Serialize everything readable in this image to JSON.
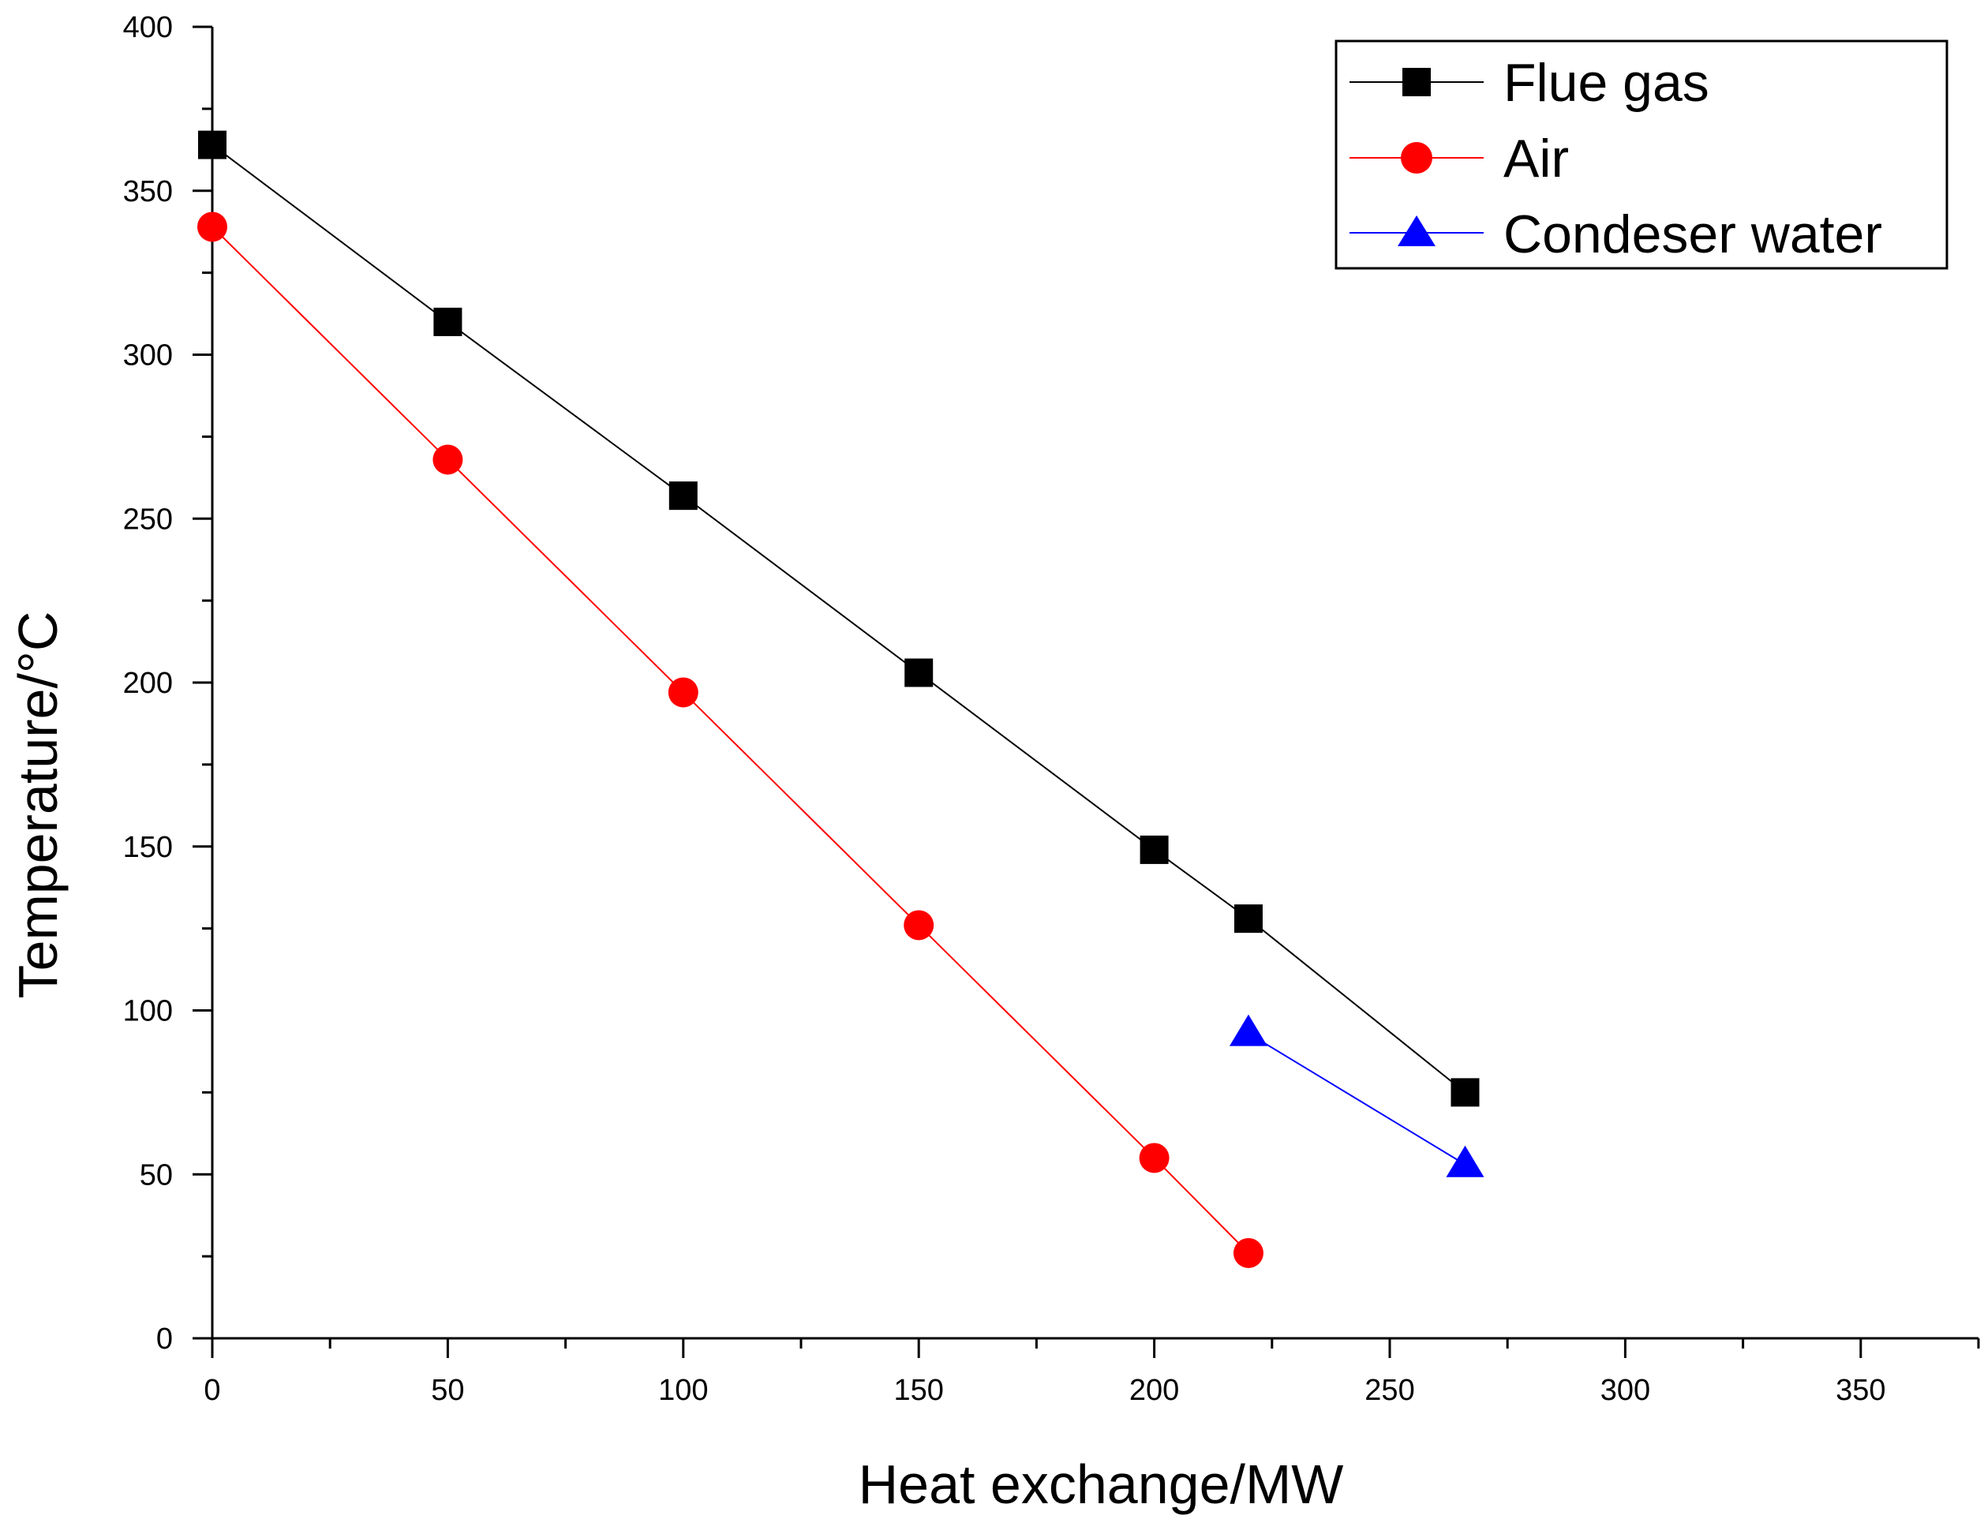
{
  "chart_data": {
    "type": "line",
    "title": "",
    "xlabel": "Heat exchange/MW",
    "ylabel": "Temperature/°C",
    "xlim": [
      0,
      375
    ],
    "ylim": [
      0,
      400
    ],
    "x_ticks": [
      0,
      50,
      100,
      150,
      200,
      250,
      300,
      350
    ],
    "y_ticks": [
      0,
      50,
      100,
      150,
      200,
      250,
      300,
      350,
      400
    ],
    "legend_position": "top-right",
    "series": [
      {
        "name": "Flue gas",
        "color": "#000000",
        "marker": "square",
        "x": [
          0,
          50,
          100,
          150,
          200,
          220,
          266
        ],
        "y": [
          364,
          310,
          257,
          203,
          149,
          128,
          75
        ]
      },
      {
        "name": "Air",
        "color": "#ff0000",
        "marker": "circle",
        "x": [
          0,
          50,
          100,
          150,
          200,
          220
        ],
        "y": [
          339,
          268,
          197,
          126,
          55,
          26
        ]
      },
      {
        "name": "Condeser water",
        "color": "#0000ff",
        "marker": "triangle",
        "x": [
          220,
          266
        ],
        "y": [
          93,
          53
        ]
      }
    ]
  }
}
